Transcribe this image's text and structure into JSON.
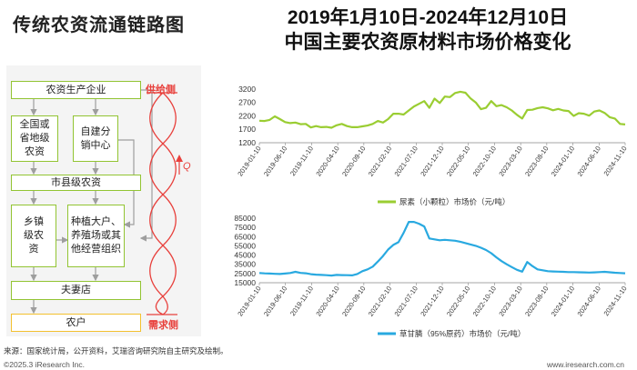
{
  "header": {
    "left_title": "传统农资流通链路图",
    "main_title_line1": "2019年1月10日-2024年12月10日",
    "main_title_line2": "中国主要农资原材料市场价格变化"
  },
  "flow": {
    "boxes": {
      "producer": "农资生产企业",
      "wholesaler": "全国或省地级农资",
      "self_built": "自建分销中心",
      "county": "市县级农资",
      "town": "乡镇级农资",
      "growers": "种植大户、养殖场或其他经营组织",
      "store": "夫妻店",
      "farmer": "农户"
    },
    "supply_label": "供给侧",
    "demand_label": "需求侧",
    "q_label": "Q",
    "colors": {
      "box_border": "#92c432",
      "farmer_border": "#f3c12f",
      "arrow": "#9e9e9e",
      "wave": "#e8403c"
    }
  },
  "chart_data": [
    {
      "type": "line",
      "title": "",
      "legend": "尿素（小颗粒）市场价（元/吨）",
      "color": "#9acd32",
      "ylim": [
        1200,
        3400
      ],
      "yticks": [
        1200,
        1700,
        2200,
        2700,
        3200
      ],
      "ytick_labels": [
        "1200",
        "1700",
        "2200",
        "2700",
        "3200"
      ],
      "xticks": [
        "2019-01-10",
        "2019-06-10",
        "2019-11-10",
        "2020-04-10",
        "2020-09-10",
        "2021-02-10",
        "2021-07-10",
        "2021-12-10",
        "2022-05-10",
        "2022-10-10",
        "2023-03-10",
        "2023-08-10",
        "2024-01-10",
        "2024-06-10",
        "2024-11-10"
      ],
      "series": [
        {
          "name": "尿素（小颗粒）市场价",
          "x": [
            0,
            1,
            2,
            3,
            4,
            5,
            6,
            7,
            8,
            9,
            10,
            11,
            12,
            13,
            14,
            15,
            16,
            17,
            18,
            19,
            20,
            21,
            22,
            23,
            24,
            25,
            26,
            27,
            28,
            29,
            30,
            31,
            32,
            33,
            34,
            35,
            36,
            37,
            38,
            39,
            40,
            41,
            42,
            43,
            44,
            45,
            46,
            47,
            48,
            49,
            50,
            51,
            52,
            53,
            54,
            55,
            56,
            57,
            58,
            59,
            60,
            61,
            62,
            63,
            64,
            65,
            66,
            67,
            68,
            69,
            70,
            71
          ],
          "values": [
            2020,
            2010,
            2050,
            2180,
            2080,
            1970,
            1930,
            1950,
            1890,
            1900,
            1770,
            1820,
            1780,
            1790,
            1760,
            1850,
            1900,
            1820,
            1780,
            1780,
            1810,
            1840,
            1900,
            2010,
            1950,
            2080,
            2280,
            2280,
            2250,
            2400,
            2550,
            2650,
            2750,
            2500,
            2840,
            2680,
            2920,
            2900,
            3050,
            3100,
            3060,
            2850,
            2700,
            2450,
            2500,
            2750,
            2560,
            2600,
            2520,
            2400,
            2240,
            2100,
            2420,
            2430,
            2490,
            2520,
            2480,
            2410,
            2460,
            2400,
            2380,
            2200,
            2300,
            2280,
            2210,
            2360,
            2400,
            2310,
            2150,
            2100,
            1900,
            1880
          ]
        }
      ]
    },
    {
      "type": "line",
      "title": "",
      "legend": "草甘膦（95%原药）市场价（元/吨）",
      "color": "#29a9e0",
      "ylim": [
        15000,
        85000
      ],
      "yticks": [
        15000,
        25000,
        35000,
        45000,
        55000,
        65000,
        75000,
        85000
      ],
      "ytick_labels": [
        "15000",
        "25000",
        "35000",
        "45000",
        "55000",
        "65000",
        "75000",
        "85000"
      ],
      "xticks": [
        "2019-01-10",
        "2019-06-10",
        "2019-11-10",
        "2020-04-10",
        "2020-09-10",
        "2021-02-10",
        "2021-07-10",
        "2021-12-10",
        "2022-05-10",
        "2022-10-10",
        "2023-03-10",
        "2023-08-10",
        "2024-01-10",
        "2024-06-10",
        "2024-11-10"
      ],
      "series": [
        {
          "name": "草甘膦（95%原药）市场价",
          "x": [
            0,
            1,
            2,
            3,
            4,
            5,
            6,
            7,
            8,
            9,
            10,
            11,
            12,
            13,
            14,
            15,
            16,
            17,
            18,
            19,
            20,
            21,
            22,
            23,
            24,
            25,
            26,
            27,
            28,
            29,
            30,
            31,
            32,
            33,
            34,
            35,
            36,
            37,
            38,
            39,
            40,
            41,
            42,
            43,
            44,
            45,
            46,
            47,
            48,
            49,
            50,
            51,
            52,
            53,
            54,
            55,
            56,
            57,
            58,
            59,
            60,
            61,
            62,
            63,
            64,
            65,
            66,
            67,
            68,
            69,
            70,
            71
          ],
          "values": [
            25500,
            25200,
            25000,
            24700,
            24500,
            25000,
            25500,
            26800,
            25600,
            25300,
            24300,
            23800,
            23500,
            23200,
            22800,
            23500,
            23300,
            23200,
            23000,
            24500,
            27500,
            29500,
            32500,
            38000,
            44000,
            51000,
            56000,
            59000,
            69000,
            81000,
            81000,
            79000,
            76000,
            63000,
            62000,
            61000,
            61500,
            61000,
            60500,
            59500,
            58000,
            56500,
            55000,
            53000,
            50500,
            47000,
            42500,
            38500,
            35000,
            32000,
            29000,
            27000,
            37500,
            33000,
            29500,
            28500,
            27500,
            27200,
            27000,
            26800,
            26500,
            26500,
            26300,
            26200,
            26000,
            26200,
            26500,
            26800,
            26300,
            25800,
            25500,
            25300
          ]
        }
      ]
    }
  ],
  "footer": {
    "source": "来源：国家统计局，公开资料，艾瑞咨询研究院自主研究及绘制。",
    "copyright": "©2025.3 iResearch Inc.",
    "url": "www.iresearch.com.cn"
  }
}
